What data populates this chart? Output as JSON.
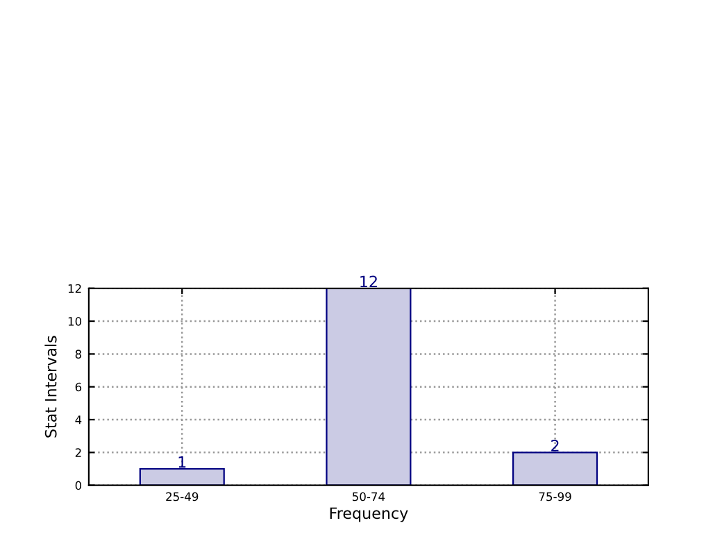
{
  "chart_data": {
    "type": "bar",
    "xlabel": "Frequency",
    "ylabel": "Stat Intervals",
    "categories": [
      "25-49",
      "50-74",
      "75-99"
    ],
    "series": [
      {
        "color": "#cbcbe4",
        "values": [
          1,
          12,
          2
        ]
      }
    ],
    "ylim": [
      0,
      12
    ],
    "yticks": [
      0,
      2,
      4,
      6,
      8,
      10,
      12
    ],
    "grid": true,
    "data_labels": true,
    "legend": false
  }
}
